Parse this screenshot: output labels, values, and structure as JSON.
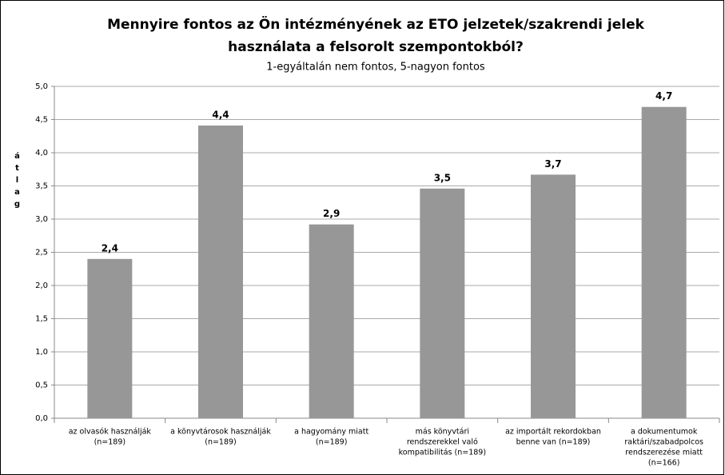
{
  "chart_data": {
    "type": "bar",
    "title": [
      "Mennyire fontos az Ön intézményének az ETO jelzetek/szakrendi jelek",
      "használata a felsorolt szempontokból?"
    ],
    "subtitle": "1-egyáltalán nem fontos, 5-nagyon fontos",
    "y_label": "átlag",
    "categories": [
      [
        "az olvasók használják",
        "(n=189)"
      ],
      [
        "a könyvtárosok használják",
        "(n=189)"
      ],
      [
        "a hagyomány miatt",
        "(n=189)"
      ],
      [
        "más könyvtári",
        "rendszerekkel való",
        "kompatibilitás (n=189)"
      ],
      [
        "az importált rekordokban",
        "benne van (n=189)"
      ],
      [
        "a dokumentumok",
        "raktári/szabadpolcos",
        "rendszerezése miatt",
        "(n=166)"
      ]
    ],
    "values": [
      2.4,
      4.41,
      2.92,
      3.46,
      3.67,
      4.69
    ],
    "value_labels": [
      "2,4",
      "4,4",
      "2,9",
      "3,5",
      "3,7",
      "4,7"
    ],
    "color": "#979797",
    "ylim": [
      0,
      5
    ],
    "yticks": [
      {
        "value": 0,
        "label": "0,0"
      },
      {
        "value": 0.5,
        "label": "0,5"
      },
      {
        "value": 1,
        "label": "1,0"
      },
      {
        "value": 1.5,
        "label": "1,5"
      },
      {
        "value": 2,
        "label": "2,0"
      },
      {
        "value": 2.5,
        "label": "2,5"
      },
      {
        "value": 3,
        "label": "3,0"
      },
      {
        "value": 3.5,
        "label": "3,5"
      },
      {
        "value": 4,
        "label": "4,0"
      },
      {
        "value": 4.5,
        "label": "4,5"
      },
      {
        "value": 5,
        "label": "5,0"
      }
    ],
    "grid": true
  }
}
